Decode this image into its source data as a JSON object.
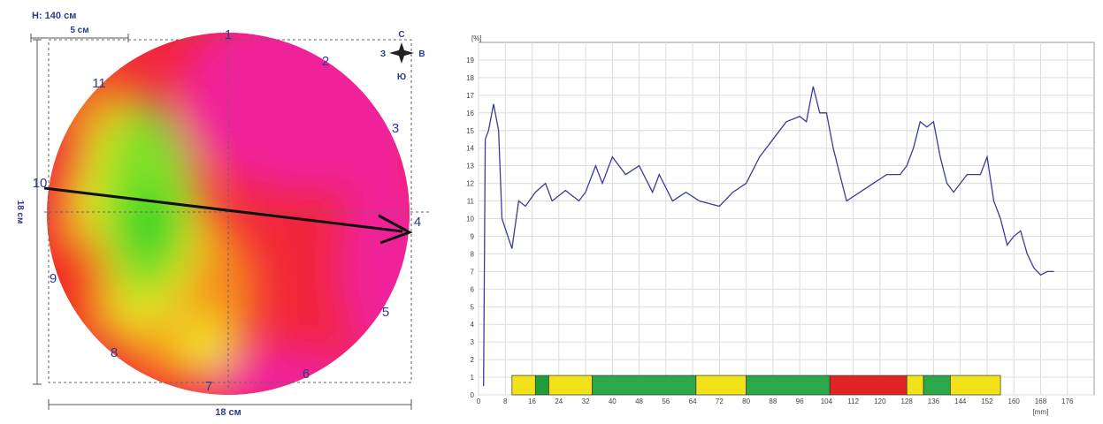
{
  "diagram": {
    "height_label": "H: 140 см",
    "scale_label": "5 см",
    "width_label": "18 см",
    "height_side_label": "18 см",
    "compass": {
      "north": "С",
      "west": "З",
      "east": "В",
      "south": "Ю"
    },
    "points": [
      "1",
      "2",
      "3",
      "4",
      "5",
      "6",
      "7",
      "8",
      "9",
      "10",
      "11"
    ]
  },
  "chart_data": {
    "type": "line",
    "y_label": "[%]",
    "x_label": "[mm]",
    "color": "#3a3aa0",
    "x": [
      1.5,
      2,
      3,
      4.5,
      6,
      7,
      10,
      12,
      14,
      17,
      20,
      22,
      26,
      30,
      32,
      35,
      37,
      40,
      44,
      48,
      52,
      54,
      58,
      62,
      66,
      72,
      76,
      80,
      84,
      88,
      92,
      96,
      98,
      100,
      102,
      104,
      106,
      108,
      110,
      114,
      118,
      122,
      126,
      128,
      130,
      132,
      134,
      136,
      138,
      140,
      142,
      146,
      150,
      152,
      154,
      156,
      158,
      160,
      162,
      164,
      166,
      168,
      170,
      172
    ],
    "values": [
      0.5,
      14.5,
      15,
      16.5,
      15,
      10,
      8.3,
      11,
      10.7,
      11.5,
      12,
      11,
      11.6,
      11,
      11.5,
      13,
      12,
      13.5,
      12.5,
      13,
      11.5,
      12.5,
      11,
      11.5,
      11,
      10.7,
      11.5,
      12,
      13.5,
      14.5,
      15.5,
      15.8,
      15.5,
      17.5,
      16,
      16,
      14,
      12.5,
      11,
      11.5,
      12,
      12.5,
      12.5,
      13,
      14,
      15.5,
      15.2,
      15.5,
      13.5,
      12,
      11.5,
      12.5,
      12.5,
      13.5,
      11,
      10,
      8.5,
      9,
      9.3,
      8,
      7.2,
      6.8,
      7,
      7
    ],
    "zones": [
      {
        "start": 10,
        "end": 17,
        "color": "#f2e21a"
      },
      {
        "start": 17,
        "end": 21,
        "color": "#1f9e3a"
      },
      {
        "start": 21,
        "end": 34,
        "color": "#f2e21a"
      },
      {
        "start": 34,
        "end": 65,
        "color": "#2aa84a"
      },
      {
        "start": 65,
        "end": 80,
        "color": "#f2e21a"
      },
      {
        "start": 80,
        "end": 105,
        "color": "#2aa84a"
      },
      {
        "start": 105,
        "end": 128,
        "color": "#e02424"
      },
      {
        "start": 128,
        "end": 133,
        "color": "#f2e21a"
      },
      {
        "start": 133,
        "end": 141,
        "color": "#2aa84a"
      },
      {
        "start": 141,
        "end": 156,
        "color": "#f2e21a"
      }
    ],
    "xlim": [
      0,
      184
    ],
    "ylim": [
      0,
      20
    ],
    "xticks": [
      0,
      8,
      16,
      24,
      32,
      40,
      48,
      56,
      64,
      72,
      80,
      88,
      96,
      104,
      112,
      120,
      128,
      136,
      144,
      152,
      160,
      168,
      176
    ],
    "yticks": [
      0,
      1,
      2,
      3,
      4,
      5,
      6,
      7,
      8,
      9,
      10,
      11,
      12,
      13,
      14,
      15,
      16,
      17,
      18,
      19
    ],
    "grid": true
  }
}
